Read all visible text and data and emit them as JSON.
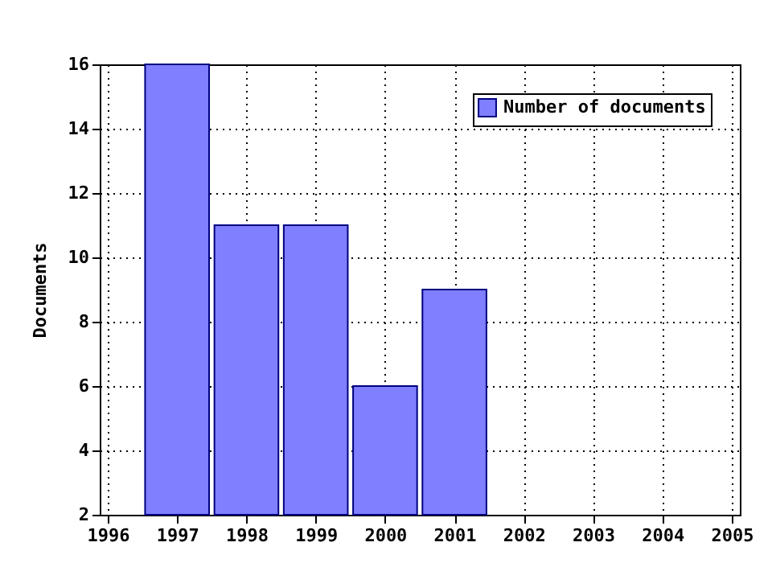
{
  "chart_data": {
    "type": "bar",
    "x": [
      1997,
      1998,
      1999,
      2000,
      2001
    ],
    "series": [
      {
        "name": "Number of documents",
        "color": "#7f7fff",
        "values": [
          16,
          11,
          11,
          6,
          9
        ]
      }
    ],
    "ylabel": "Documents",
    "xlim": [
      1996,
      2005
    ],
    "xticks": [
      1996,
      1997,
      1998,
      1999,
      2000,
      2001,
      2002,
      2003,
      2004,
      2005
    ],
    "ylim": [
      2,
      16
    ],
    "yticks": [
      2,
      4,
      6,
      8,
      10,
      12,
      14,
      16
    ],
    "grid": true,
    "legend": "top right"
  }
}
